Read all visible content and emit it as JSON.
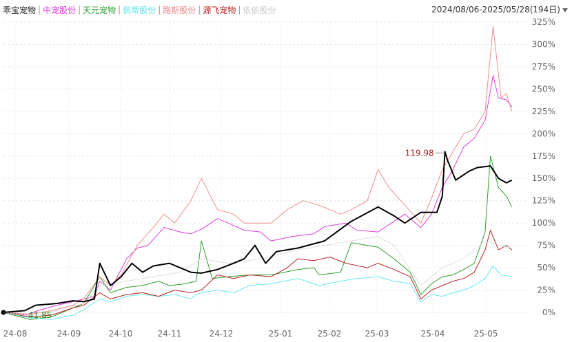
{
  "legend": {
    "series_names": [
      "乖宝宠物",
      "中宠股份",
      "天元宠物",
      "佩蒂股份",
      "路斯股份",
      "源飞宠物",
      "依依股份"
    ]
  },
  "date_range": "2024/08/06-2025/05/28(194日)",
  "chart_data": {
    "type": "line",
    "x_ticks": [
      "24-08",
      "24-09",
      "24-10",
      "24-11",
      "24-12",
      "25-01",
      "25-02",
      "25-03",
      "25-04",
      "25-05"
    ],
    "y_ticks": [
      "0%",
      "25%",
      "50%",
      "75%",
      "100%",
      "125%",
      "150%",
      "175%",
      "200%",
      "225%",
      "250%",
      "275%",
      "300%",
      "325%"
    ],
    "ylim": [
      0,
      325
    ],
    "y_unit": "%",
    "annotations": [
      {
        "label": "119.98",
        "x_day": 165,
        "y": 180
      },
      {
        "label": "41.85",
        "x_day": 0,
        "y": 0
      }
    ],
    "series": [
      {
        "name": "乖宝宠物",
        "color": "#000000",
        "width": 2,
        "points": [
          [
            0,
            0
          ],
          [
            8,
            2
          ],
          [
            12,
            8
          ],
          [
            20,
            10
          ],
          [
            26,
            13
          ],
          [
            30,
            12
          ],
          [
            34,
            15
          ],
          [
            36,
            55
          ],
          [
            40,
            30
          ],
          [
            44,
            40
          ],
          [
            48,
            55
          ],
          [
            52,
            45
          ],
          [
            56,
            52
          ],
          [
            62,
            55
          ],
          [
            66,
            50
          ],
          [
            70,
            45
          ],
          [
            74,
            44
          ],
          [
            80,
            48
          ],
          [
            86,
            55
          ],
          [
            90,
            60
          ],
          [
            94,
            75
          ],
          [
            98,
            55
          ],
          [
            102,
            68
          ],
          [
            110,
            72
          ],
          [
            120,
            80
          ],
          [
            130,
            102
          ],
          [
            135,
            110
          ],
          [
            140,
            118
          ],
          [
            146,
            108
          ],
          [
            150,
            100
          ],
          [
            156,
            112
          ],
          [
            162,
            112
          ],
          [
            164,
            130
          ],
          [
            165,
            180
          ],
          [
            166,
            170
          ],
          [
            169,
            148
          ],
          [
            174,
            158
          ],
          [
            177,
            162
          ],
          [
            182,
            164
          ],
          [
            185,
            150
          ],
          [
            188,
            145
          ],
          [
            190,
            148
          ]
        ]
      },
      {
        "name": "中宠股份",
        "color": "#dc3cdc",
        "width": 1,
        "points": [
          [
            0,
            0
          ],
          [
            8,
            -3
          ],
          [
            14,
            3
          ],
          [
            20,
            8
          ],
          [
            26,
            12
          ],
          [
            30,
            15
          ],
          [
            34,
            18
          ],
          [
            36,
            35
          ],
          [
            40,
            25
          ],
          [
            46,
            60
          ],
          [
            50,
            72
          ],
          [
            54,
            75
          ],
          [
            60,
            95
          ],
          [
            66,
            90
          ],
          [
            70,
            88
          ],
          [
            74,
            93
          ],
          [
            80,
            105
          ],
          [
            84,
            100
          ],
          [
            90,
            92
          ],
          [
            96,
            90
          ],
          [
            100,
            80
          ],
          [
            108,
            85
          ],
          [
            116,
            88
          ],
          [
            120,
            96
          ],
          [
            128,
            100
          ],
          [
            132,
            92
          ],
          [
            140,
            90
          ],
          [
            150,
            110
          ],
          [
            156,
            95
          ],
          [
            160,
            110
          ],
          [
            164,
            140
          ],
          [
            168,
            160
          ],
          [
            172,
            185
          ],
          [
            176,
            195
          ],
          [
            180,
            215
          ],
          [
            183,
            265
          ],
          [
            185,
            240
          ],
          [
            188,
            238
          ],
          [
            190,
            230
          ]
        ]
      },
      {
        "name": "天元宠物",
        "color": "#2ca02c",
        "width": 1,
        "points": [
          [
            0,
            0
          ],
          [
            10,
            -8
          ],
          [
            18,
            -5
          ],
          [
            26,
            5
          ],
          [
            30,
            10
          ],
          [
            36,
            40
          ],
          [
            40,
            22
          ],
          [
            46,
            28
          ],
          [
            52,
            30
          ],
          [
            58,
            35
          ],
          [
            62,
            30
          ],
          [
            68,
            32
          ],
          [
            72,
            35
          ],
          [
            74,
            80
          ],
          [
            78,
            38
          ],
          [
            84,
            40
          ],
          [
            92,
            42
          ],
          [
            100,
            42
          ],
          [
            110,
            48
          ],
          [
            116,
            50
          ],
          [
            118,
            42
          ],
          [
            126,
            45
          ],
          [
            130,
            78
          ],
          [
            136,
            75
          ],
          [
            140,
            73
          ],
          [
            146,
            60
          ],
          [
            152,
            45
          ],
          [
            156,
            20
          ],
          [
            160,
            32
          ],
          [
            164,
            40
          ],
          [
            168,
            42
          ],
          [
            172,
            48
          ],
          [
            176,
            55
          ],
          [
            180,
            90
          ],
          [
            182,
            175
          ],
          [
            185,
            140
          ],
          [
            188,
            130
          ],
          [
            190,
            118
          ]
        ]
      },
      {
        "name": "佩蒂股份",
        "color": "#66e8f0",
        "width": 1,
        "points": [
          [
            0,
            0
          ],
          [
            10,
            -6
          ],
          [
            18,
            -8
          ],
          [
            26,
            -3
          ],
          [
            30,
            3
          ],
          [
            36,
            15
          ],
          [
            40,
            12
          ],
          [
            46,
            18
          ],
          [
            52,
            20
          ],
          [
            58,
            18
          ],
          [
            64,
            20
          ],
          [
            70,
            15
          ],
          [
            72,
            20
          ],
          [
            74,
            22
          ],
          [
            80,
            25
          ],
          [
            86,
            22
          ],
          [
            92,
            30
          ],
          [
            100,
            32
          ],
          [
            110,
            38
          ],
          [
            118,
            30
          ],
          [
            126,
            35
          ],
          [
            132,
            38
          ],
          [
            140,
            40
          ],
          [
            146,
            35
          ],
          [
            152,
            32
          ],
          [
            156,
            12
          ],
          [
            160,
            20
          ],
          [
            164,
            18
          ],
          [
            168,
            22
          ],
          [
            172,
            25
          ],
          [
            176,
            30
          ],
          [
            180,
            38
          ],
          [
            183,
            52
          ],
          [
            186,
            42
          ],
          [
            190,
            40
          ]
        ]
      },
      {
        "name": "路斯股份",
        "color": "#f08c8c",
        "width": 1,
        "points": [
          [
            0,
            0
          ],
          [
            10,
            -2
          ],
          [
            18,
            2
          ],
          [
            26,
            8
          ],
          [
            30,
            15
          ],
          [
            36,
            40
          ],
          [
            40,
            30
          ],
          [
            44,
            42
          ],
          [
            50,
            75
          ],
          [
            56,
            95
          ],
          [
            60,
            110
          ],
          [
            64,
            100
          ],
          [
            70,
            125
          ],
          [
            74,
            150
          ],
          [
            80,
            115
          ],
          [
            86,
            110
          ],
          [
            90,
            100
          ],
          [
            96,
            100
          ],
          [
            100,
            100
          ],
          [
            106,
            115
          ],
          [
            112,
            125
          ],
          [
            118,
            120
          ],
          [
            126,
            110
          ],
          [
            130,
            115
          ],
          [
            136,
            125
          ],
          [
            140,
            160
          ],
          [
            144,
            140
          ],
          [
            150,
            120
          ],
          [
            156,
            100
          ],
          [
            160,
            128
          ],
          [
            164,
            160
          ],
          [
            168,
            180
          ],
          [
            172,
            200
          ],
          [
            176,
            205
          ],
          [
            180,
            225
          ],
          [
            183,
            320
          ],
          [
            186,
            240
          ],
          [
            188,
            245
          ],
          [
            190,
            225
          ]
        ]
      },
      {
        "name": "源飞宠物",
        "color": "#b82020",
        "width": 1,
        "points": [
          [
            0,
            0
          ],
          [
            10,
            -5
          ],
          [
            18,
            -3
          ],
          [
            26,
            5
          ],
          [
            30,
            8
          ],
          [
            36,
            22
          ],
          [
            40,
            15
          ],
          [
            46,
            20
          ],
          [
            52,
            22
          ],
          [
            58,
            18
          ],
          [
            64,
            25
          ],
          [
            70,
            22
          ],
          [
            74,
            25
          ],
          [
            80,
            42
          ],
          [
            86,
            38
          ],
          [
            92,
            42
          ],
          [
            100,
            40
          ],
          [
            106,
            50
          ],
          [
            110,
            60
          ],
          [
            116,
            58
          ],
          [
            122,
            62
          ],
          [
            128,
            55
          ],
          [
            136,
            50
          ],
          [
            140,
            55
          ],
          [
            146,
            48
          ],
          [
            152,
            40
          ],
          [
            156,
            15
          ],
          [
            160,
            25
          ],
          [
            164,
            30
          ],
          [
            168,
            35
          ],
          [
            172,
            38
          ],
          [
            176,
            45
          ],
          [
            180,
            70
          ],
          [
            182,
            92
          ],
          [
            185,
            70
          ],
          [
            188,
            75
          ],
          [
            190,
            70
          ]
        ]
      },
      {
        "name": "依依股份",
        "color": "#dedede",
        "width": 1,
        "points": [
          [
            0,
            0
          ],
          [
            10,
            -4
          ],
          [
            20,
            2
          ],
          [
            30,
            10
          ],
          [
            36,
            30
          ],
          [
            46,
            35
          ],
          [
            56,
            40
          ],
          [
            66,
            45
          ],
          [
            74,
            60
          ],
          [
            84,
            55
          ],
          [
            96,
            60
          ],
          [
            110,
            70
          ],
          [
            120,
            75
          ],
          [
            130,
            80
          ],
          [
            140,
            85
          ],
          [
            146,
            75
          ],
          [
            156,
            30
          ],
          [
            164,
            50
          ],
          [
            172,
            60
          ],
          [
            180,
            80
          ],
          [
            186,
            75
          ],
          [
            190,
            72
          ]
        ]
      }
    ]
  }
}
